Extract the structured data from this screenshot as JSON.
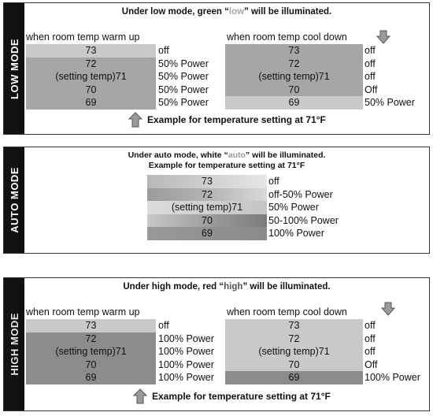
{
  "low": {
    "side_label": "LOW MODE",
    "heading_pre": "Under low mode, green “",
    "heading_word": "low",
    "heading_post": "” will be illuminated.",
    "warm_header": "when room temp warm up",
    "cool_header": "when room temp cool down",
    "warm_rows": [
      {
        "temp": "73",
        "status": "off"
      },
      {
        "temp": "72",
        "status": "50% Power"
      },
      {
        "temp": "(setting temp)71",
        "status": "50% Power"
      },
      {
        "temp": "70",
        "status": "50% Power"
      },
      {
        "temp": "69",
        "status": "50% Power"
      }
    ],
    "cool_rows": [
      {
        "temp": "73",
        "status": "off"
      },
      {
        "temp": "72",
        "status": "off"
      },
      {
        "temp": "(setting temp)71",
        "status": "off"
      },
      {
        "temp": "70",
        "status": "Off"
      },
      {
        "temp": "69",
        "status": "50% Power"
      }
    ],
    "footer": "Example for temperature setting at 71°F"
  },
  "auto": {
    "side_label": "AUTO MODE",
    "heading_pre": "Under auto mode, white “",
    "heading_word": "auto",
    "heading_post": "” will be illuminated.",
    "subheading": "Example for temperature setting at 71°F",
    "rows": [
      {
        "temp": "73",
        "status": "off"
      },
      {
        "temp": "72",
        "status": "off-50% Power"
      },
      {
        "temp": "(setting temp)71",
        "status": "50% Power"
      },
      {
        "temp": "70",
        "status": "50-100% Power"
      },
      {
        "temp": "69",
        "status": "100% Power"
      }
    ]
  },
  "high": {
    "side_label": "HIGH MODE",
    "heading_pre": "Under high mode, red “",
    "heading_word": "high",
    "heading_post": "” will be illuminated.",
    "warm_header": "when room temp warm up",
    "cool_header": "when room temp cool down",
    "warm_rows": [
      {
        "temp": "73",
        "status": "off"
      },
      {
        "temp": "72",
        "status": "100% Power"
      },
      {
        "temp": "(setting temp)71",
        "status": "100% Power"
      },
      {
        "temp": "70",
        "status": "100% Power"
      },
      {
        "temp": "69",
        "status": "100% Power"
      }
    ],
    "cool_rows": [
      {
        "temp": "73",
        "status": "off"
      },
      {
        "temp": "72",
        "status": "off"
      },
      {
        "temp": "(setting temp)71",
        "status": "off"
      },
      {
        "temp": "70",
        "status": "Off"
      },
      {
        "temp": "69",
        "status": "100% Power"
      }
    ],
    "footer": "Example for temperature setting at 71°F"
  }
}
